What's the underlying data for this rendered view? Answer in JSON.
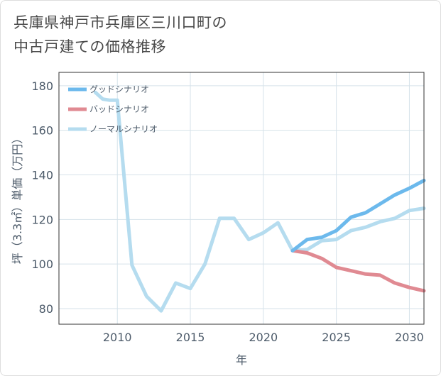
{
  "title": {
    "line1": "兵庫県神戸市兵庫区三川口町の",
    "line2": "中古戸建ての価格推移"
  },
  "chart_data": {
    "type": "line",
    "xlabel": "年",
    "ylabel": "坪（3.3㎡）単価（万円）",
    "xlim": [
      2006,
      2031
    ],
    "ylim": [
      73,
      186
    ],
    "xticks": [
      2010,
      2015,
      2020,
      2025,
      2030
    ],
    "yticks": [
      80,
      100,
      120,
      140,
      160,
      180
    ],
    "grid": true,
    "legend_position": "top-left",
    "series": [
      {
        "name": "グッドシナリオ",
        "color": "#6cb9ec",
        "x": [
          2022,
          2023,
          2024,
          2025,
          2026,
          2027,
          2028,
          2029,
          2030,
          2031
        ],
        "y": [
          106,
          111,
          112,
          115,
          121,
          123,
          127,
          131,
          134,
          137.5
        ]
      },
      {
        "name": "バッドシナリオ",
        "color": "#e08a92",
        "x": [
          2022,
          2023,
          2024,
          2025,
          2026,
          2027,
          2028,
          2029,
          2030,
          2031
        ],
        "y": [
          106,
          105,
          102.5,
          98.5,
          97,
          95.5,
          95,
          91.5,
          89.5,
          88
        ]
      },
      {
        "name": "ノーマルシナリオ",
        "color": "#b5dcef",
        "x": [
          2008.5,
          2009,
          2009.5,
          2010,
          2011,
          2012,
          2013,
          2014,
          2015,
          2016,
          2017,
          2018,
          2019,
          2020,
          2021,
          2022,
          2023,
          2024,
          2025,
          2026,
          2027,
          2028,
          2029,
          2030,
          2031
        ],
        "y": [
          177,
          174,
          173.5,
          173.5,
          99.5,
          85.5,
          79,
          91.5,
          89,
          100,
          120.5,
          120.5,
          111,
          114,
          118.5,
          106,
          106.5,
          110.5,
          111,
          115,
          116.5,
          119,
          120.5,
          124,
          125
        ]
      }
    ]
  }
}
